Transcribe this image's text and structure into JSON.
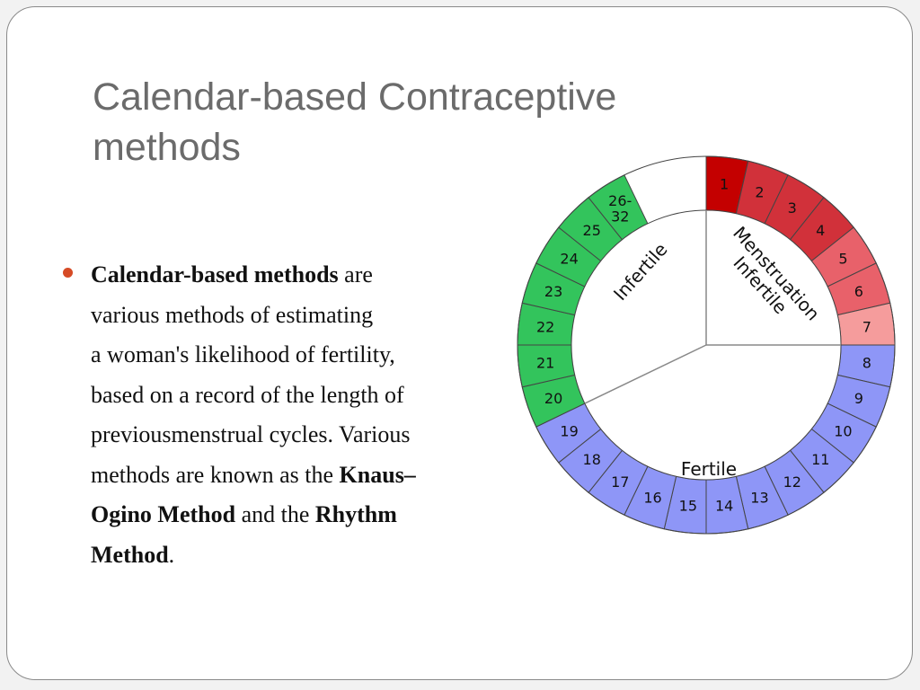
{
  "slide": {
    "title": "Calendar-based Contraceptive methods",
    "bullet": {
      "lines": [
        [
          {
            "text": "Calendar-based methods",
            "bold": true
          },
          {
            "text": " are",
            "bold": false
          }
        ],
        [
          {
            "text": "various methods of estimating",
            "bold": false
          }
        ],
        [
          {
            "text": "a woman's likelihood of fertility,",
            "bold": false
          }
        ],
        [
          {
            "text": "based on a record of the length of",
            "bold": false
          }
        ],
        [
          {
            "text": "previousmenstrual cycles. Various",
            "bold": false
          }
        ],
        [
          {
            "text": "methods are known as the ",
            "bold": false
          },
          {
            "text": "Knaus–",
            "bold": true
          }
        ],
        [
          {
            "text": "Ogino Method",
            "bold": true
          },
          {
            "text": " and the ",
            "bold": false
          },
          {
            "text": "Rhythm",
            "bold": true
          }
        ],
        [
          {
            "text": "Method",
            "bold": true
          },
          {
            "text": ".",
            "bold": false
          }
        ]
      ]
    }
  },
  "cycle_wheel": {
    "days": [
      "1",
      "2",
      "3",
      "4",
      "5",
      "6",
      "7",
      "8",
      "9",
      "10",
      "11",
      "12",
      "13",
      "14",
      "15",
      "16",
      "17",
      "18",
      "19",
      "20",
      "21",
      "22",
      "23",
      "24",
      "25",
      "26-32"
    ],
    "day_colors": {
      "1": "#c40000",
      "2": "#d1313a",
      "3": "#d1313a",
      "4": "#d1313a",
      "5": "#e8616a",
      "6": "#e8616a",
      "7": "#f59c9c",
      "fertile": "#8e96f7",
      "infertile": "#33c45c"
    },
    "phases": [
      {
        "label": "Menstruation",
        "color": "#111111"
      },
      {
        "label": "Infertile",
        "color": "#111111"
      },
      {
        "label": "Fertile",
        "color": "#111111"
      },
      {
        "label": "Infertile",
        "color": "#111111"
      }
    ]
  }
}
